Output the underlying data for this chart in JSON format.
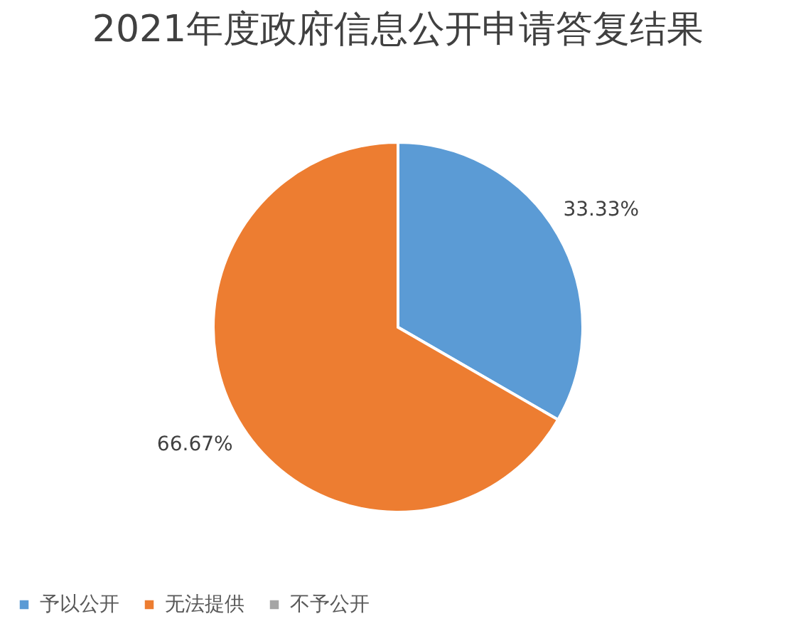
{
  "chart_data": {
    "type": "pie",
    "title": "2021年度政府信息公开申请答复结果",
    "categories": [
      "予以公开",
      "无法提供",
      "不予公开"
    ],
    "values": [
      33.33,
      66.67,
      0
    ],
    "colors": [
      "#5b9bd5",
      "#ed7d31",
      "#a5a5a5"
    ],
    "value_labels": [
      "33.33%",
      "66.67%",
      null
    ],
    "legend": "bottom"
  }
}
